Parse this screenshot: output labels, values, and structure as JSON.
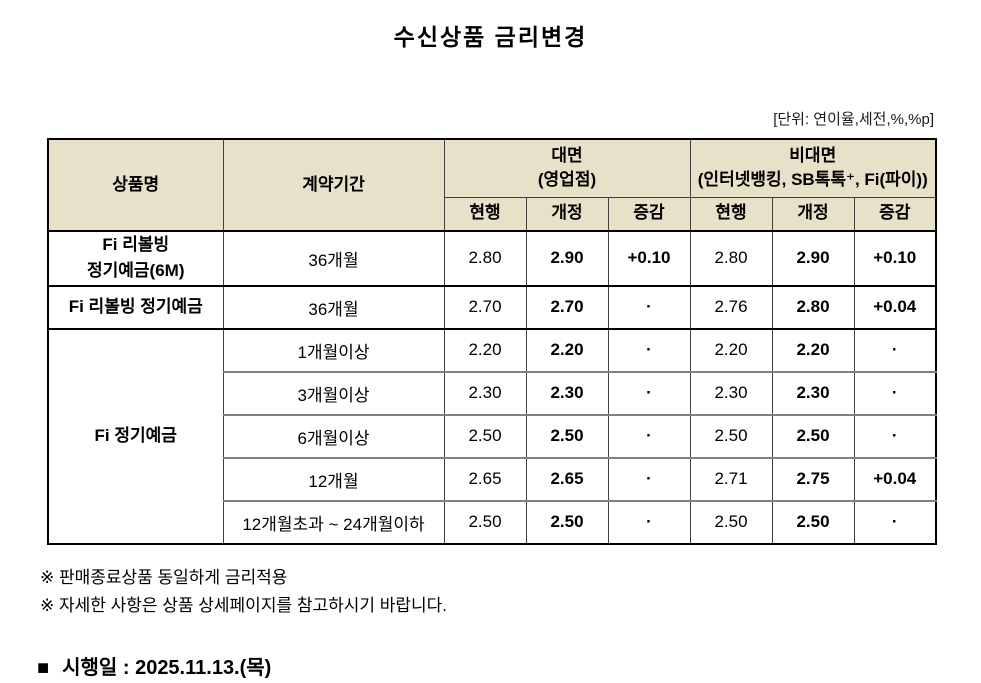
{
  "title": "수신상품 금리변경",
  "unit_note": "[단위: 연이율,세전,%,%p]",
  "table": {
    "headers": {
      "product": "상품명",
      "period": "계약기간",
      "face": {
        "line1": "대면",
        "line2": "(영업점)"
      },
      "nonface": {
        "line1": "비대면",
        "line2": "(인터넷뱅킹, SB톡톡⁺, Fi(파이))"
      },
      "sub": [
        "현행",
        "개정",
        "증감",
        "현행",
        "개정",
        "증감"
      ]
    },
    "rows": [
      {
        "product": [
          "Fi 리볼빙",
          "정기예금(6M)"
        ],
        "rowspan": 1,
        "group_start": true,
        "period": "36개월",
        "values": [
          "2.80",
          "2.90",
          "+0.10",
          "2.80",
          "2.90",
          "+0.10"
        ]
      },
      {
        "product": [
          "Fi 리볼빙 정기예금"
        ],
        "rowspan": 1,
        "group_start": true,
        "period": "36개월",
        "values": [
          "2.70",
          "2.70",
          "·",
          "2.76",
          "2.80",
          "+0.04"
        ]
      },
      {
        "product": [
          "Fi 정기예금"
        ],
        "rowspan": 5,
        "group_start": true,
        "period": "1개월이상",
        "values": [
          "2.20",
          "2.20",
          "·",
          "2.20",
          "2.20",
          "·"
        ]
      },
      {
        "period": "3개월이상",
        "values": [
          "2.30",
          "2.30",
          "·",
          "2.30",
          "2.30",
          "·"
        ]
      },
      {
        "period": "6개월이상",
        "values": [
          "2.50",
          "2.50",
          "·",
          "2.50",
          "2.50",
          "·"
        ]
      },
      {
        "period": "12개월",
        "values": [
          "2.65",
          "2.65",
          "·",
          "2.71",
          "2.75",
          "+0.04"
        ]
      },
      {
        "period": "12개월초과 ~ 24개월이하",
        "values": [
          "2.50",
          "2.50",
          "·",
          "2.50",
          "2.50",
          "·"
        ]
      }
    ]
  },
  "notes": [
    "※ 판매종료상품 동일하게 금리적용",
    "※ 자세한 사항은 상품 상세페이지를 참고하시기 바랍니다."
  ],
  "effective": {
    "bullet": "■",
    "text": "시행일 : 2025.11.13.(목)"
  },
  "colors": {
    "header_bg": "#E8E1C9",
    "border_black": "#000000",
    "border_gray": "#808080"
  }
}
